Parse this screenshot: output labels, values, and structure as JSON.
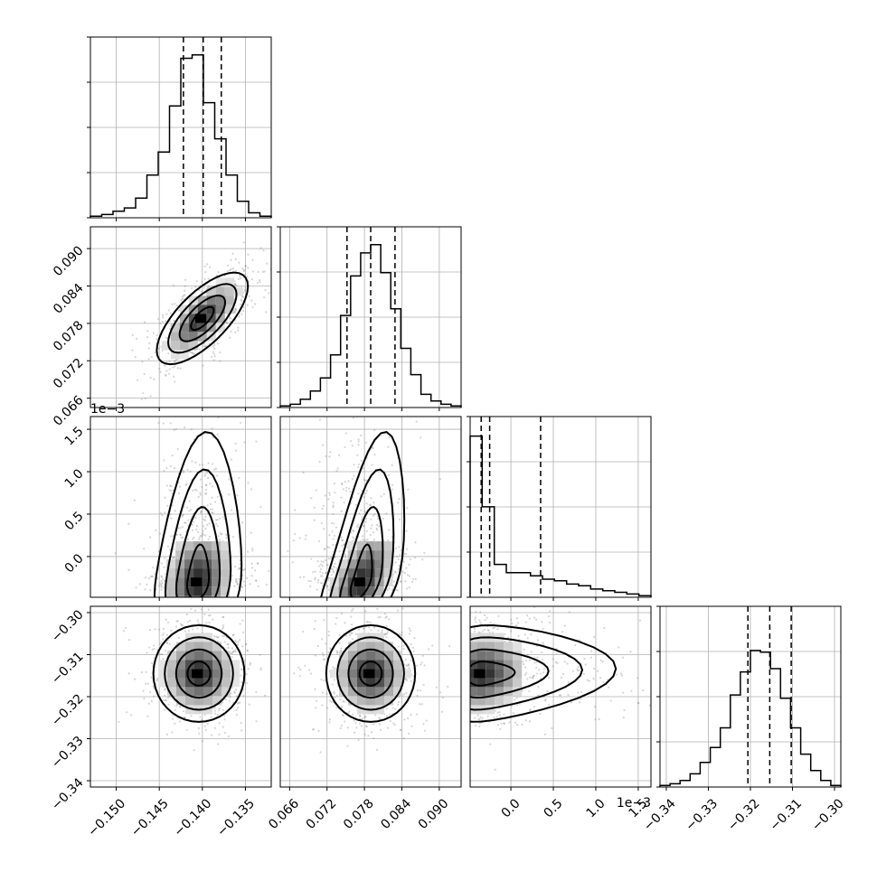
{
  "chart_data": {
    "type": "corner",
    "grid": true,
    "parameters": [
      {
        "ticks": [
          -0.15,
          -0.145,
          -0.14,
          -0.135
        ],
        "tick_labels": [
          "−0.150",
          "−0.145",
          "−0.140",
          "−0.135"
        ],
        "range": [
          -0.153,
          -0.132
        ],
        "quantiles": [
          -0.1422,
          -0.1399,
          -0.1378
        ]
      },
      {
        "ticks": [
          0.066,
          0.072,
          0.078,
          0.084,
          0.09
        ],
        "tick_labels": [
          "0.066",
          "0.072",
          "0.078",
          "0.084",
          "0.090"
        ],
        "range": [
          0.0645,
          0.0935
        ],
        "quantiles": [
          0.0752,
          0.079,
          0.0829
        ]
      },
      {
        "ticks": [
          0.0,
          0.5,
          1.0,
          1.5
        ],
        "tick_labels": [
          "0.0",
          "0.5",
          "1.0",
          "1.5"
        ],
        "range": [
          -0.48,
          1.65
        ],
        "quantiles": [
          -0.35,
          -0.25,
          0.35
        ],
        "offset_label": "1e−3"
      },
      {
        "ticks": [
          -0.34,
          -0.33,
          -0.32,
          -0.31,
          -0.3
        ],
        "tick_labels": [
          "−0.34",
          "−0.33",
          "−0.32",
          "−0.31",
          "−0.30"
        ],
        "range": [
          -0.3415,
          -0.2985
        ],
        "quantiles": [
          -0.3206,
          -0.3154,
          -0.3103
        ]
      }
    ],
    "histograms": [
      [
        0.01,
        0.02,
        0.04,
        0.06,
        0.12,
        0.26,
        0.4,
        0.68,
        0.97,
        0.99,
        0.7,
        0.48,
        0.26,
        0.1,
        0.03,
        0.01
      ],
      [
        0.01,
        0.02,
        0.05,
        0.1,
        0.18,
        0.32,
        0.56,
        0.8,
        0.94,
        0.99,
        0.82,
        0.6,
        0.36,
        0.2,
        0.08,
        0.04,
        0.02,
        0.01
      ],
      [
        0.98,
        0.55,
        0.2,
        0.15,
        0.15,
        0.13,
        0.11,
        0.1,
        0.08,
        0.07,
        0.05,
        0.04,
        0.03,
        0.02,
        0.01
      ],
      [
        0.01,
        0.02,
        0.04,
        0.08,
        0.15,
        0.24,
        0.36,
        0.56,
        0.7,
        0.83,
        0.82,
        0.72,
        0.54,
        0.36,
        0.2,
        0.1,
        0.04,
        0.01
      ]
    ],
    "pairs": [
      {
        "x": 0,
        "y": 1,
        "center": [
          -0.14,
          0.0788
        ],
        "sigma": [
          0.0023,
          0.0032
        ],
        "rho": 0.7
      },
      {
        "x": 0,
        "y": 2,
        "center": [
          -0.1405,
          -0.3
        ],
        "sigma": [
          0.0022,
          0.35
        ],
        "rho": 0.2
      },
      {
        "x": 1,
        "y": 2,
        "center": [
          0.0775,
          -0.3
        ],
        "sigma": [
          0.003,
          0.35
        ],
        "rho": 0.55
      },
      {
        "x": 0,
        "y": 3,
        "center": [
          -0.1404,
          -0.3145
        ],
        "sigma": [
          0.0023,
          0.005
        ],
        "rho": 0.0
      },
      {
        "x": 1,
        "y": 3,
        "center": [
          0.079,
          -0.3145
        ],
        "sigma": [
          0.0031,
          0.005
        ],
        "rho": 0.0
      },
      {
        "x": 2,
        "y": 3,
        "center": [
          -0.35,
          -0.3145
        ],
        "sigma": [
          0.3,
          0.005
        ],
        "rho": 0.1
      }
    ]
  }
}
